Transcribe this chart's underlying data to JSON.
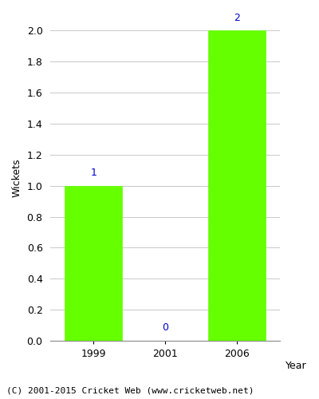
{
  "years": [
    1999,
    2001,
    2006
  ],
  "wickets": [
    1,
    0,
    2
  ],
  "bar_color": "#66ff00",
  "bar_edge_color": "#66ff00",
  "ylabel": "Wickets",
  "xlabel": "Year",
  "ylim": [
    0,
    2.1
  ],
  "yticks": [
    0.0,
    0.2,
    0.4,
    0.6,
    0.8,
    1.0,
    1.2,
    1.4,
    1.6,
    1.8,
    2.0
  ],
  "label_color": "#0000cc",
  "label_fontsize": 9,
  "ylabel_fontsize": 9,
  "tick_fontsize": 9,
  "footer_text": "(C) 2001-2015 Cricket Web (www.cricketweb.net)",
  "footer_fontsize": 8,
  "background_color": "#ffffff",
  "plot_background_color": "#ffffff",
  "bar_width": 0.8,
  "grid_color": "#c8c8c8",
  "grid_linewidth": 0.7,
  "x_positions": [
    0,
    1,
    2
  ],
  "x_labels": [
    "1999",
    "2001",
    "2006"
  ]
}
